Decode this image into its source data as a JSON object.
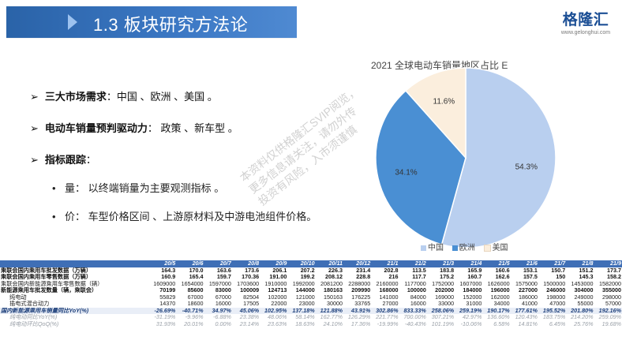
{
  "header": {
    "title": "1.3 板块研究方法论",
    "logo_main": "格隆汇",
    "logo_sub": "www.gelonghui.com",
    "accent": "#2f6cb5"
  },
  "bullets": [
    {
      "label": "三大市场需求",
      "text": "：中国 、欧洲 、美国 。"
    },
    {
      "label": "电动车销量预判驱动力",
      "text": "： 政策 、新车型 。"
    },
    {
      "label": "指标跟踪",
      "text": "："
    }
  ],
  "sub_bullets": [
    {
      "text": "量： 以终端销量为主要观测指标 。"
    },
    {
      "text": "价： 车型价格区间 、上游原材料及中游电池组件价格。"
    }
  ],
  "watermark": {
    "line1": "本资料仅供格隆汇SVIP阅览，",
    "line2": "更多信息请关注，请勿外传",
    "line3": "投资有风险，入市须谨慎"
  },
  "chart_data": {
    "type": "pie",
    "title": "2021 全球电动车销量地区占比 E",
    "labels": [
      "中国",
      "欧洲",
      "美国"
    ],
    "values": [
      54.3,
      34.1,
      11.6
    ],
    "value_labels": [
      "54.3%",
      "34.1%",
      "11.6%"
    ],
    "colors": [
      "#b9cfef",
      "#4a8fd3",
      "#fbeedd"
    ],
    "legend_position": "bottom"
  },
  "table": {
    "headers": [
      "",
      "20/5",
      "20/6",
      "20/7",
      "20/8",
      "20/9",
      "20/10",
      "20/11",
      "20/12",
      "21/1",
      "21/2",
      "21/3",
      "21/4",
      "21/5",
      "21/6",
      "21/7",
      "21/8",
      "21/9"
    ],
    "rows": [
      {
        "style": "bold",
        "label": "乘联会国内乘用车批发数据（万辆）",
        "values": [
          "164.3",
          "170.0",
          "163.6",
          "173.6",
          "206.1",
          "207.2",
          "226.3",
          "231.4",
          "202.8",
          "113.5",
          "183.8",
          "165.9",
          "160.6",
          "153.1",
          "150.7",
          "151.2",
          "173.7"
        ]
      },
      {
        "style": "bold",
        "label": "乘联会国内乘用车零售数据（万辆）",
        "values": [
          "160.9",
          "165.4",
          "159.7",
          "170.36",
          "191.00",
          "199.2",
          "208.12",
          "228.8",
          "216",
          "117.7",
          "175.2",
          "160.7",
          "162.6",
          "157.5",
          "150",
          "145.3",
          "158.2"
        ]
      },
      {
        "style": "normal",
        "label": "乘联会国内新能源乘用车零售数据（辆）",
        "values": [
          "1609000",
          "1654000",
          "1597000",
          "1703600",
          "1910000",
          "1992000",
          "2081200",
          "2288000",
          "2160000",
          "1177000",
          "1752000",
          "1607000",
          "1626000",
          "1575000",
          "1500000",
          "1453000",
          "1582000"
        ]
      },
      {
        "style": "bold",
        "label": "新能源乘用车批发数量（辆，乘联会）",
        "values": [
          "70199",
          "85600",
          "83000",
          "100009",
          "124713",
          "144000",
          "180163",
          "209990",
          "168000",
          "100000",
          "202000",
          "184000",
          "196000",
          "227000",
          "246000",
          "304000",
          "355000"
        ]
      },
      {
        "style": "normal indent",
        "label": "纯电动",
        "values": [
          "55829",
          "67000",
          "67000",
          "82504",
          "102000",
          "121000",
          "150163",
          "176225",
          "141000",
          "84000",
          "169000",
          "152000",
          "162000",
          "186000",
          "198000",
          "249000",
          "298000"
        ]
      },
      {
        "style": "normal indent",
        "label": "插电式混合动力",
        "values": [
          "14370",
          "18600",
          "16000",
          "17505",
          "22000",
          "23000",
          "30000",
          "33765",
          "27000",
          "16000",
          "33000",
          "31000",
          "34000",
          "41000",
          "47000",
          "55000",
          "57000"
        ]
      },
      {
        "style": "yoy",
        "label": "国内新能源乘用车销量同比YoY(%)",
        "values": [
          "-26.69%",
          "-40.71%",
          "34.97%",
          "45.06%",
          "102.95%",
          "137.18%",
          "121.88%",
          "43.91%",
          "302.86%",
          "833.33%",
          "258.06%",
          "259.19%",
          "190.17%",
          "177.61%",
          "195.52%",
          "201.80%",
          "192.16%"
        ]
      },
      {
        "style": "light indent",
        "label": "纯电动同比YoY(%)",
        "values": [
          "-31.19%",
          "-9.96%",
          "-6.88%",
          "23.38%",
          "48.06%",
          "58.14%",
          "162.77%",
          "126.29%",
          "221.77%",
          "700.00%",
          "307.21%",
          "42.97%",
          "136.60%",
          "120.43%",
          "183.75%",
          "214.20%",
          "259.09%"
        ]
      },
      {
        "style": "light indent",
        "label": "纯电动环比QoQ(%)",
        "values": [
          "31.93%",
          "20.01%",
          "0.00%",
          "23.14%",
          "23.63%",
          "18.63%",
          "24.10%",
          "17.36%",
          "-19.99%",
          "-40.43%",
          "101.19%",
          "-10.06%",
          "6.58%",
          "14.81%",
          "6.45%",
          "25.76%",
          "19.68%"
        ]
      }
    ]
  }
}
